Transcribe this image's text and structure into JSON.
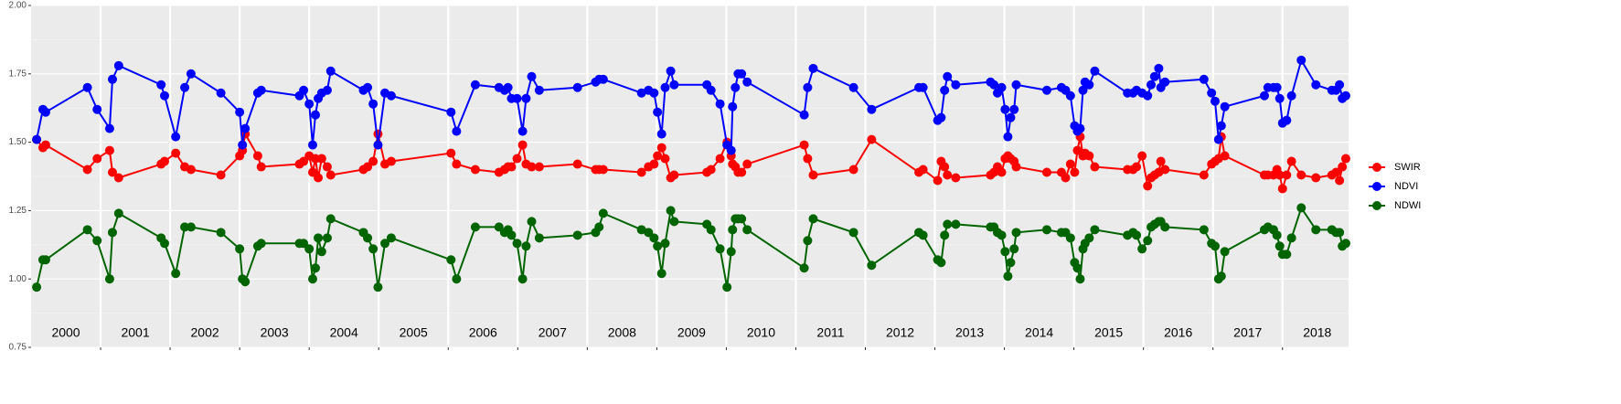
{
  "chart_data": {
    "type": "line",
    "x": [
      2000.08,
      2000.17,
      2000.21,
      2000.81,
      2000.95,
      2001.13,
      2001.17,
      2001.26,
      2001.87,
      2001.92,
      2002.08,
      2002.21,
      2002.3,
      2002.73,
      2003.0,
      2003.04,
      2003.08,
      2003.26,
      2003.31,
      2003.86,
      2003.92,
      2004.0,
      2004.05,
      2004.09,
      2004.13,
      2004.18,
      2004.26,
      2004.31,
      2004.78,
      2004.84,
      2004.92,
      2004.99,
      2005.09,
      2005.18,
      2006.04,
      2006.12,
      2006.39,
      2006.73,
      2006.81,
      2006.86,
      2006.91,
      2006.99,
      2007.07,
      2007.12,
      2007.2,
      2007.31,
      2007.86,
      2008.12,
      2008.17,
      2008.23,
      2008.78,
      2008.88,
      2008.96,
      2009.01,
      2009.07,
      2009.12,
      2009.2,
      2009.25,
      2009.72,
      2009.78,
      2009.91,
      2010.01,
      2010.07,
      2010.09,
      2010.13,
      2010.17,
      2010.22,
      2010.3,
      2011.12,
      2011.17,
      2011.25,
      2011.83,
      2012.09,
      2012.77,
      2012.83,
      2013.04,
      2013.09,
      2013.14,
      2013.18,
      2013.3,
      2013.8,
      2013.85,
      2013.9,
      2013.96,
      2014.01,
      2014.05,
      2014.09,
      2014.14,
      2014.17,
      2014.61,
      2014.82,
      2014.88,
      2014.95,
      2015.01,
      2015.05,
      2015.09,
      2015.13,
      2015.16,
      2015.22,
      2015.3,
      2015.77,
      2015.85,
      2015.9,
      2015.98,
      2016.06,
      2016.11,
      2016.16,
      2016.22,
      2016.25,
      2016.31,
      2016.87,
      2016.98,
      2017.03,
      2017.08,
      2017.12,
      2017.17,
      2017.74,
      2017.79,
      2017.87,
      2017.92,
      2017.96,
      2018.0,
      2018.06,
      2018.13,
      2018.27,
      2018.48,
      2018.71,
      2018.77,
      2018.82,
      2018.86,
      2018.91
    ],
    "series": [
      {
        "name": "SWIR",
        "color": "#ff0000",
        "values": [
          1.51,
          1.48,
          1.49,
          1.4,
          1.44,
          1.47,
          1.39,
          1.37,
          1.42,
          1.43,
          1.46,
          1.41,
          1.4,
          1.38,
          1.45,
          1.47,
          1.53,
          1.45,
          1.41,
          1.42,
          1.43,
          1.45,
          1.39,
          1.44,
          1.37,
          1.44,
          1.41,
          1.38,
          1.4,
          1.41,
          1.43,
          1.53,
          1.42,
          1.43,
          1.46,
          1.42,
          1.4,
          1.39,
          1.4,
          1.41,
          1.41,
          1.44,
          1.49,
          1.42,
          1.41,
          1.41,
          1.42,
          1.4,
          1.4,
          1.4,
          1.39,
          1.41,
          1.42,
          1.45,
          1.48,
          1.44,
          1.37,
          1.38,
          1.39,
          1.4,
          1.44,
          1.5,
          1.45,
          1.42,
          1.41,
          1.39,
          1.39,
          1.42,
          1.49,
          1.44,
          1.38,
          1.4,
          1.51,
          1.39,
          1.4,
          1.36,
          1.43,
          1.41,
          1.38,
          1.37,
          1.38,
          1.39,
          1.41,
          1.39,
          1.44,
          1.45,
          1.44,
          1.43,
          1.41,
          1.39,
          1.39,
          1.37,
          1.42,
          1.39,
          1.47,
          1.52,
          1.45,
          1.46,
          1.45,
          1.41,
          1.4,
          1.4,
          1.41,
          1.45,
          1.34,
          1.37,
          1.38,
          1.39,
          1.43,
          1.4,
          1.38,
          1.42,
          1.43,
          1.44,
          1.52,
          1.45,
          1.38,
          1.38,
          1.38,
          1.4,
          1.38,
          1.33,
          1.38,
          1.43,
          1.38,
          1.37,
          1.38,
          1.39,
          1.36,
          1.41,
          1.44
        ]
      },
      {
        "name": "NDVI",
        "color": "#0000ff",
        "values": [
          1.51,
          1.62,
          1.61,
          1.7,
          1.62,
          1.55,
          1.73,
          1.78,
          1.71,
          1.67,
          1.52,
          1.7,
          1.75,
          1.68,
          1.61,
          1.49,
          1.55,
          1.68,
          1.69,
          1.67,
          1.69,
          1.64,
          1.49,
          1.6,
          1.66,
          1.68,
          1.69,
          1.76,
          1.69,
          1.7,
          1.64,
          1.49,
          1.68,
          1.67,
          1.61,
          1.54,
          1.71,
          1.7,
          1.69,
          1.7,
          1.66,
          1.66,
          1.54,
          1.66,
          1.74,
          1.69,
          1.7,
          1.72,
          1.73,
          1.73,
          1.68,
          1.69,
          1.68,
          1.61,
          1.53,
          1.7,
          1.76,
          1.71,
          1.71,
          1.69,
          1.64,
          1.49,
          1.47,
          1.63,
          1.7,
          1.75,
          1.75,
          1.72,
          1.6,
          1.7,
          1.77,
          1.7,
          1.62,
          1.7,
          1.7,
          1.58,
          1.59,
          1.69,
          1.74,
          1.71,
          1.72,
          1.71,
          1.68,
          1.7,
          1.62,
          1.52,
          1.59,
          1.62,
          1.71,
          1.69,
          1.7,
          1.69,
          1.67,
          1.56,
          1.54,
          1.55,
          1.69,
          1.72,
          1.71,
          1.76,
          1.68,
          1.68,
          1.69,
          1.68,
          1.67,
          1.71,
          1.74,
          1.77,
          1.7,
          1.72,
          1.73,
          1.68,
          1.65,
          1.51,
          1.56,
          1.63,
          1.67,
          1.7,
          1.7,
          1.7,
          1.66,
          1.57,
          1.58,
          1.67,
          1.8,
          1.71,
          1.69,
          1.69,
          1.71,
          1.66,
          1.67
        ]
      },
      {
        "name": "NDWI",
        "color": "#006400",
        "values": [
          0.97,
          1.07,
          1.07,
          1.18,
          1.14,
          1.0,
          1.17,
          1.24,
          1.15,
          1.13,
          1.02,
          1.19,
          1.19,
          1.17,
          1.11,
          1.0,
          0.99,
          1.12,
          1.13,
          1.13,
          1.13,
          1.11,
          1.0,
          1.04,
          1.15,
          1.1,
          1.15,
          1.22,
          1.17,
          1.15,
          1.11,
          0.97,
          1.13,
          1.15,
          1.07,
          1.0,
          1.19,
          1.19,
          1.17,
          1.18,
          1.16,
          1.13,
          1.0,
          1.12,
          1.21,
          1.15,
          1.16,
          1.17,
          1.19,
          1.24,
          1.18,
          1.17,
          1.15,
          1.12,
          1.02,
          1.13,
          1.25,
          1.21,
          1.2,
          1.18,
          1.11,
          0.97,
          1.1,
          1.18,
          1.22,
          1.22,
          1.22,
          1.18,
          1.04,
          1.14,
          1.22,
          1.17,
          1.05,
          1.17,
          1.16,
          1.07,
          1.06,
          1.16,
          1.2,
          1.2,
          1.19,
          1.19,
          1.17,
          1.16,
          1.1,
          1.01,
          1.06,
          1.11,
          1.17,
          1.18,
          1.17,
          1.17,
          1.15,
          1.06,
          1.04,
          1.0,
          1.11,
          1.13,
          1.15,
          1.18,
          1.16,
          1.17,
          1.16,
          1.11,
          1.14,
          1.19,
          1.2,
          1.21,
          1.21,
          1.19,
          1.18,
          1.13,
          1.12,
          1.0,
          1.01,
          1.1,
          1.18,
          1.19,
          1.18,
          1.16,
          1.12,
          1.09,
          1.09,
          1.15,
          1.26,
          1.18,
          1.18,
          1.17,
          1.17,
          1.12,
          1.13
        ]
      }
    ],
    "xlim": [
      2000,
      2018.95
    ],
    "xticks": [
      2001,
      2002,
      2003,
      2004,
      2005,
      2006,
      2007,
      2008,
      2009,
      2010,
      2011,
      2012,
      2013,
      2014,
      2015,
      2016,
      2017,
      2018
    ],
    "ylim": [
      0.75,
      2.0
    ],
    "yticks": [
      {
        "value": 0.75,
        "label": "0.75"
      },
      {
        "value": 1.0,
        "label": "1.00"
      },
      {
        "value": 1.25,
        "label": "1.25"
      },
      {
        "value": 1.5,
        "label": "1.50"
      },
      {
        "value": 1.75,
        "label": "1.75"
      },
      {
        "value": 2.0,
        "label": "2.00"
      }
    ],
    "annotations": [
      {
        "x": 2000.5,
        "y": 0.8,
        "text": "2000"
      },
      {
        "x": 2001.5,
        "y": 0.8,
        "text": "2001"
      },
      {
        "x": 2002.5,
        "y": 0.8,
        "text": "2002"
      },
      {
        "x": 2003.5,
        "y": 0.8,
        "text": "2003"
      },
      {
        "x": 2004.5,
        "y": 0.8,
        "text": "2004"
      },
      {
        "x": 2005.5,
        "y": 0.8,
        "text": "2005"
      },
      {
        "x": 2006.5,
        "y": 0.8,
        "text": "2006"
      },
      {
        "x": 2007.5,
        "y": 0.8,
        "text": "2007"
      },
      {
        "x": 2008.5,
        "y": 0.8,
        "text": "2008"
      },
      {
        "x": 2009.5,
        "y": 0.8,
        "text": "2009"
      },
      {
        "x": 2010.5,
        "y": 0.8,
        "text": "2010"
      },
      {
        "x": 2011.5,
        "y": 0.8,
        "text": "2011"
      },
      {
        "x": 2012.5,
        "y": 0.8,
        "text": "2012"
      },
      {
        "x": 2013.5,
        "y": 0.8,
        "text": "2013"
      },
      {
        "x": 2014.5,
        "y": 0.8,
        "text": "2014"
      },
      {
        "x": 2015.5,
        "y": 0.8,
        "text": "2015"
      },
      {
        "x": 2016.5,
        "y": 0.8,
        "text": "2016"
      },
      {
        "x": 2017.5,
        "y": 0.8,
        "text": "2017"
      },
      {
        "x": 2018.5,
        "y": 0.8,
        "text": "2018"
      }
    ],
    "grid": true,
    "legend": "right",
    "legend_order": [
      "SWIR",
      "NDVI",
      "NDWI"
    ]
  }
}
